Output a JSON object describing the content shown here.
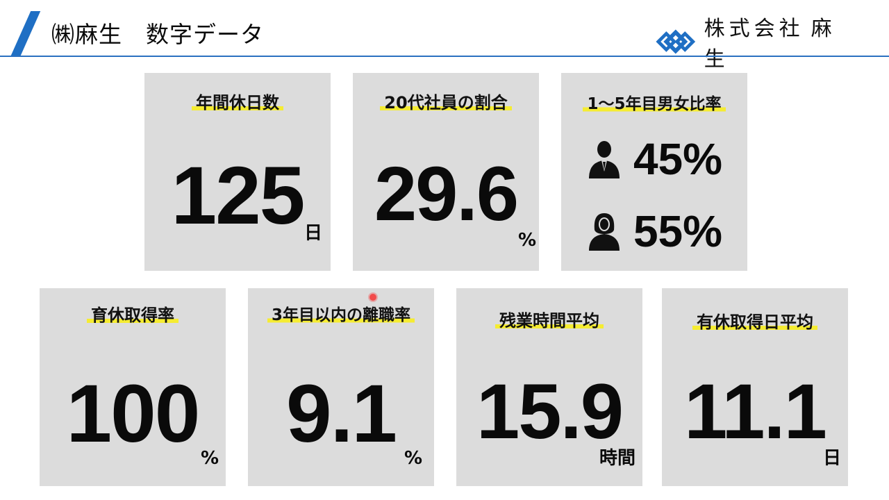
{
  "header": {
    "title": "㈱麻生　数字データ",
    "company_prefix": "株式会社",
    "company_name": "麻 生",
    "accent_color": "#1f6fc4"
  },
  "cards": [
    {
      "title": "年間休日数",
      "value": "125",
      "unit": "日"
    },
    {
      "title": "20代社員の割合",
      "value": "29.6",
      "unit": "%"
    },
    {
      "title": "1～5年目男女比率",
      "male": "45%",
      "female": "55%",
      "male_icon": "male-user-icon",
      "female_icon": "female-user-icon"
    },
    {
      "title": "育休取得率",
      "value": "100",
      "unit": "%"
    },
    {
      "title": "3年目以内の離職率",
      "value": "9.1",
      "unit": "%"
    },
    {
      "title": "残業時間平均",
      "value": "15.9",
      "unit": "時間"
    },
    {
      "title": "有休取得日平均",
      "value": "11.1",
      "unit": "日"
    }
  ],
  "colors": {
    "card_bg": "#dcdcdc",
    "highlight": "#f5ec32",
    "rule": "#2a70c0"
  }
}
